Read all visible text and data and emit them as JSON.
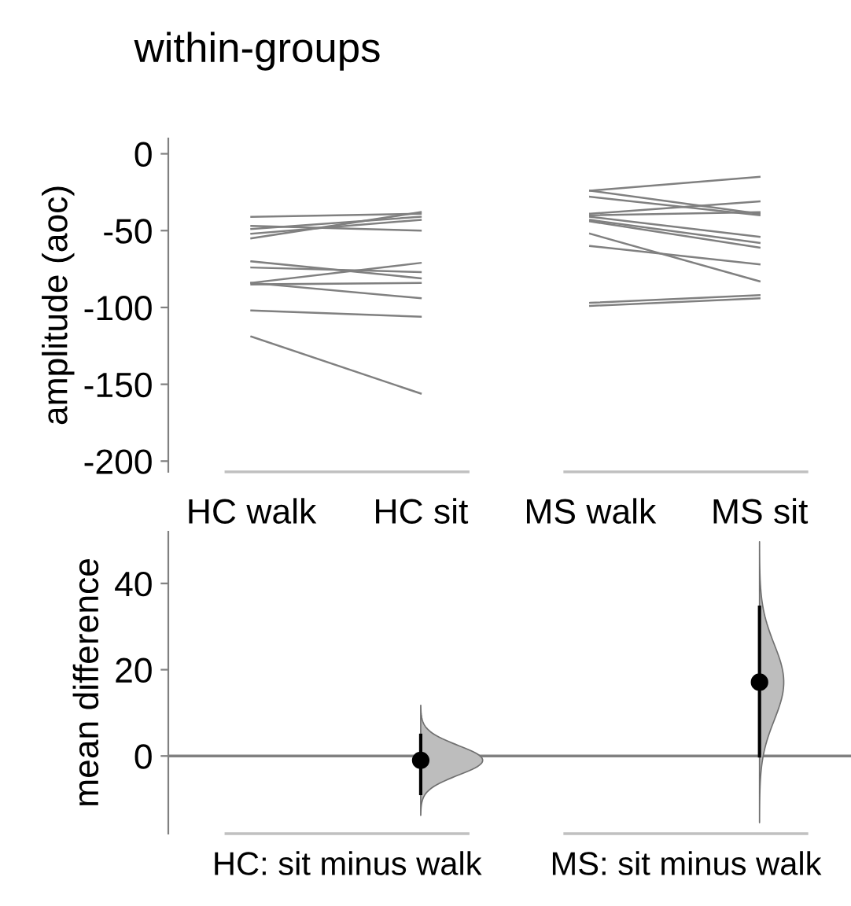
{
  "chart_data": [
    {
      "type": "line",
      "title": "within-groups",
      "ylabel": "amplitude (aoc)",
      "categories": [
        "HC walk",
        "HC sit",
        "MS walk",
        "MS sit"
      ],
      "ylim": [
        -207,
        10
      ],
      "yticks": [
        0,
        -50,
        -100,
        -150,
        -200
      ],
      "grid": false,
      "marker": "none",
      "line_style": "solid",
      "series": [
        {
          "color": "#808080",
          "values": [
            -41,
            -39,
            null,
            null
          ]
        },
        {
          "color": "#808080",
          "values": [
            -47,
            -50,
            null,
            null
          ]
        },
        {
          "color": "#808080",
          "values": [
            -49,
            -41,
            null,
            null
          ]
        },
        {
          "color": "#808080",
          "values": [
            -52,
            -43,
            null,
            null
          ]
        },
        {
          "color": "#808080",
          "values": [
            -55,
            -38,
            null,
            null
          ]
        },
        {
          "color": "#808080",
          "values": [
            -70,
            -81,
            null,
            null
          ]
        },
        {
          "color": "#808080",
          "values": [
            -74,
            -77,
            null,
            null
          ]
        },
        {
          "color": "#808080",
          "values": [
            -84,
            -71,
            null,
            null
          ]
        },
        {
          "color": "#808080",
          "values": [
            -85,
            -84,
            null,
            null
          ]
        },
        {
          "color": "#808080",
          "values": [
            -84,
            -94,
            null,
            null
          ]
        },
        {
          "color": "#808080",
          "values": [
            -102,
            -106,
            null,
            null
          ]
        },
        {
          "color": "#808080",
          "values": [
            -119,
            -156,
            null,
            null
          ]
        },
        {
          "color": "#808080",
          "values": [
            null,
            null,
            -24,
            -15
          ]
        },
        {
          "color": "#808080",
          "values": [
            null,
            null,
            -24,
            -39
          ]
        },
        {
          "color": "#808080",
          "values": [
            null,
            null,
            -28,
            -40
          ]
        },
        {
          "color": "#808080",
          "values": [
            null,
            null,
            -39,
            -31
          ]
        },
        {
          "color": "#808080",
          "values": [
            null,
            null,
            -40,
            -38
          ]
        },
        {
          "color": "#808080",
          "values": [
            null,
            null,
            -41,
            -54
          ]
        },
        {
          "color": "#808080",
          "values": [
            null,
            null,
            -43,
            -58
          ]
        },
        {
          "color": "#808080",
          "values": [
            null,
            null,
            -44,
            -61
          ]
        },
        {
          "color": "#808080",
          "values": [
            null,
            null,
            -52,
            -83
          ]
        },
        {
          "color": "#808080",
          "values": [
            null,
            null,
            -60,
            -72
          ]
        },
        {
          "color": "#808080",
          "values": [
            null,
            null,
            -97,
            -92
          ]
        },
        {
          "color": "#808080",
          "values": [
            null,
            null,
            -99,
            -94
          ]
        }
      ]
    },
    {
      "type": "scatter",
      "ylabel": "mean difference",
      "categories": [
        "HC: sit minus walk",
        "MS: sit minus walk"
      ],
      "ylim": [
        -18,
        52
      ],
      "yticks": [
        0,
        20,
        40
      ],
      "grid": false,
      "marker": "circle",
      "series": [
        {
          "color": "#000000",
          "values": [
            -1.0,
            17.1
          ],
          "errors": [
            [
              -8.7,
              4.8
            ],
            [
              0,
              34.5
            ]
          ]
        }
      ],
      "ref_lines": [
        {
          "axis": "y",
          "value": 0,
          "color": "#808080"
        }
      ]
    }
  ]
}
